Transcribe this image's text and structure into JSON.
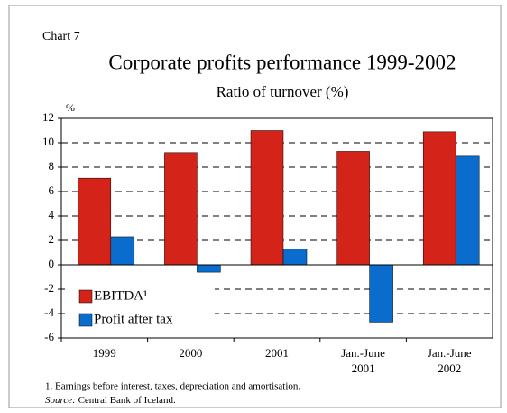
{
  "chart_data": {
    "type": "bar",
    "label": "Chart 7",
    "title": "Corporate profits performance 1999-2002",
    "subtitle": "Ratio of turnover (%)",
    "y_unit": "%",
    "categories": [
      "1999",
      "2000",
      "2001",
      "Jan.-June 2001",
      "Jan.-June 2002"
    ],
    "series": [
      {
        "name": "EBITDA¹",
        "color": "#d42318",
        "values": [
          7.1,
          9.2,
          11.0,
          9.3,
          10.9
        ]
      },
      {
        "name": "Profit after tax",
        "color": "#0a6ccc",
        "values": [
          2.3,
          -0.6,
          1.3,
          -4.7,
          8.9
        ]
      }
    ],
    "ylim": [
      -6,
      12
    ],
    "yticks": [
      -6,
      -4,
      -2,
      0,
      2,
      4,
      6,
      8,
      10,
      12
    ],
    "grid": true,
    "legend": "lower left",
    "footnote": "1. Earnings before interest, taxes, depreciation and amortisation.",
    "source_label": "Source:",
    "source": "Central Bank of Iceland."
  }
}
